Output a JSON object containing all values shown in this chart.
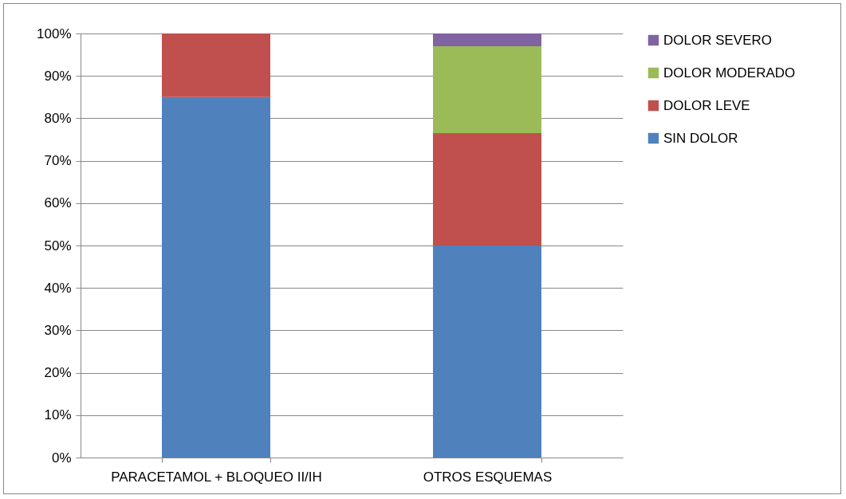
{
  "chart_data": {
    "type": "bar",
    "stacked": true,
    "categories": [
      "PARACETAMOL + BLOQUEO II/IH",
      "OTROS ESQUEMAS"
    ],
    "series": [
      {
        "name": "SIN DOLOR",
        "color": "#4f81bd",
        "values": [
          85,
          50
        ]
      },
      {
        "name": "DOLOR LEVE",
        "color": "#c0504d",
        "values": [
          15,
          26.5
        ]
      },
      {
        "name": "DOLOR MODERADO",
        "color": "#9bbb59",
        "values": [
          0,
          20.5
        ]
      },
      {
        "name": "DOLOR SEVERO",
        "color": "#8064a2",
        "values": [
          0,
          3
        ]
      }
    ],
    "ylim": [
      0,
      100
    ],
    "yticks": [
      {
        "value": 0,
        "label": "0%"
      },
      {
        "value": 10,
        "label": "10%"
      },
      {
        "value": 20,
        "label": "20%"
      },
      {
        "value": 30,
        "label": "30%"
      },
      {
        "value": 40,
        "label": "40%"
      },
      {
        "value": 50,
        "label": "50%"
      },
      {
        "value": 60,
        "label": "60%"
      },
      {
        "value": 70,
        "label": "70%"
      },
      {
        "value": 80,
        "label": "80%"
      },
      {
        "value": 90,
        "label": "90%"
      },
      {
        "value": 100,
        "label": "100%"
      }
    ],
    "grid": "y",
    "legend": "right"
  }
}
